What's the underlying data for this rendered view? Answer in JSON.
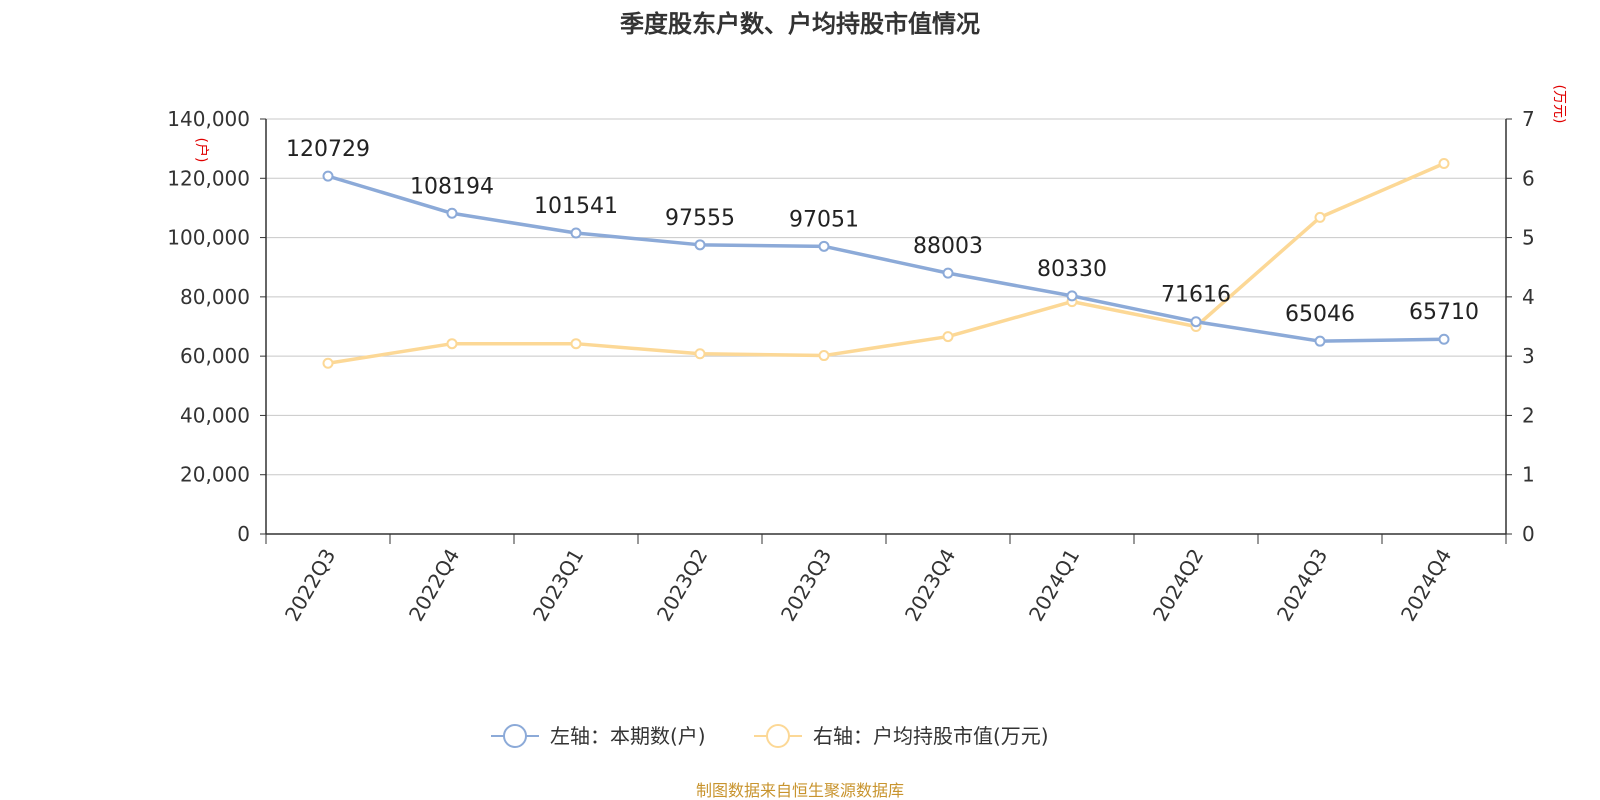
{
  "chart_data": {
    "type": "line",
    "title": "季度股东户数、户均持股市值情况",
    "categories": [
      "2022Q3",
      "2022Q4",
      "2023Q1",
      "2023Q2",
      "2023Q3",
      "2023Q4",
      "2024Q1",
      "2024Q2",
      "2024Q3",
      "2024Q4"
    ],
    "left_axis": {
      "unit_label": "(户)",
      "ylim": [
        0,
        140000
      ],
      "ticks": [
        "0",
        "20,000",
        "40,000",
        "60,000",
        "80,000",
        "100,000",
        "120,000",
        "140,000"
      ]
    },
    "right_axis": {
      "unit_label": "(万元)",
      "ylim": [
        0,
        7
      ],
      "ticks": [
        "0",
        "1",
        "2",
        "3",
        "4",
        "5",
        "6",
        "7"
      ]
    },
    "series": [
      {
        "name": "左轴：本期数(户)",
        "axis": "left",
        "color": "#8caad8",
        "values": [
          120729,
          108194,
          101541,
          97555,
          97051,
          88003,
          80330,
          71616,
          65046,
          65710
        ],
        "labels": [
          "120729",
          "108194",
          "101541",
          "97555",
          "97051",
          "88003",
          "80330",
          "71616",
          "65046",
          "65710"
        ]
      },
      {
        "name": "右轴：户均持股市值(万元)",
        "axis": "right",
        "color": "#fcd896",
        "values": [
          2.88,
          3.21,
          3.21,
          3.04,
          3.01,
          3.33,
          3.92,
          3.5,
          5.34,
          6.25
        ]
      }
    ],
    "grid": true,
    "legend": "bottom-center",
    "source": "制图数据来自恒生聚源数据库"
  }
}
